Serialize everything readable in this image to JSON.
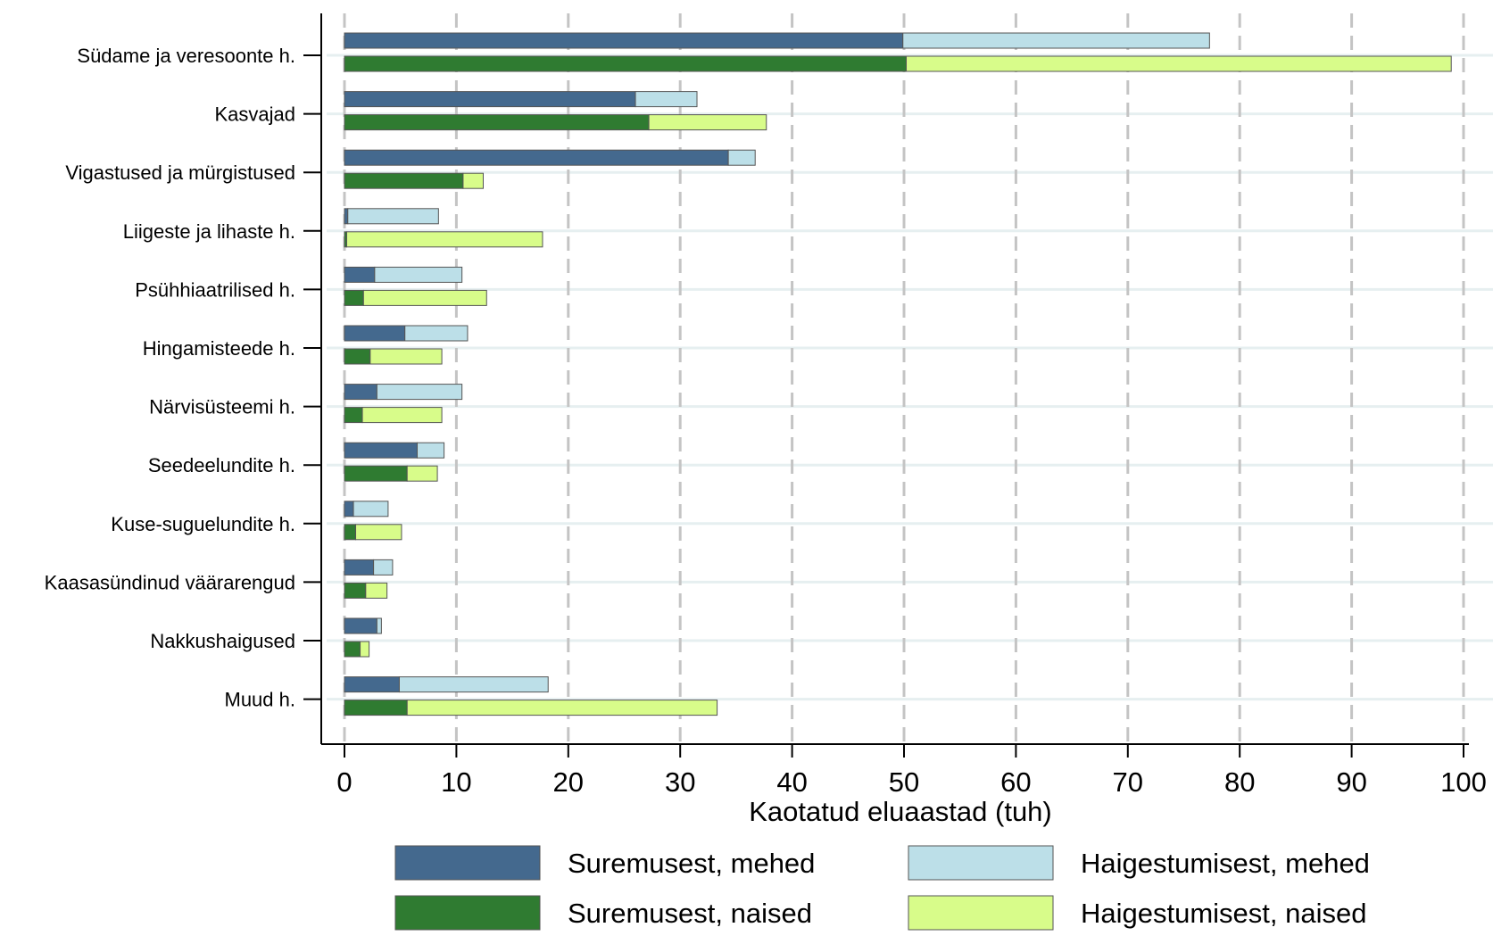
{
  "chart_data": {
    "type": "bar",
    "orientation": "horizontal",
    "stacked": true,
    "xlabel": "Kaotatud eluaastad (tuh)",
    "ylabel": "",
    "xlim": [
      0,
      100
    ],
    "xticks": [
      0,
      10,
      20,
      30,
      40,
      50,
      60,
      70,
      80,
      90,
      100
    ],
    "grid": "vertical dashed",
    "legend_position": "bottom",
    "categories": [
      "Südame ja veresoonte h.",
      "Kasvajad",
      "Vigastused ja mürgistused",
      "Liigeste ja lihaste h.",
      "Psühhiaatrilised h.",
      "Hingamisteede h.",
      "Närvisüsteemi h.",
      "Seedeelundite h.",
      "Kuse-suguelundite h.",
      "Kaasasündinud väärarengud",
      "Nakkushaigused",
      "Muud h."
    ],
    "series": [
      {
        "name": "Suremusest, mehed",
        "color": "#44698e",
        "group": "mehed",
        "values": [
          49.9,
          26.0,
          34.3,
          0.3,
          2.7,
          5.4,
          2.9,
          6.5,
          0.8,
          2.6,
          2.9,
          4.9
        ]
      },
      {
        "name": "Haigestumisest, mehed",
        "color": "#bcdfe8",
        "group": "mehed",
        "values": [
          27.4,
          5.5,
          2.4,
          8.1,
          7.8,
          5.6,
          7.6,
          2.4,
          3.1,
          1.7,
          0.4,
          13.3
        ]
      },
      {
        "name": "Suremusest, naised",
        "color": "#2f7b31",
        "group": "naised",
        "values": [
          50.2,
          27.2,
          10.6,
          0.2,
          1.7,
          2.3,
          1.6,
          5.6,
          1.0,
          1.9,
          1.4,
          5.6
        ]
      },
      {
        "name": "Haigestumisest, naised",
        "color": "#d8fc8a",
        "group": "naised",
        "values": [
          48.7,
          10.5,
          1.8,
          17.5,
          11.0,
          6.4,
          7.1,
          2.7,
          4.1,
          1.9,
          0.8,
          27.7
        ]
      }
    ]
  },
  "legend": {
    "items": [
      {
        "label": "Suremusest, mehed",
        "color": "#44698e"
      },
      {
        "label": "Haigestumisest, mehed",
        "color": "#bcdfe8"
      },
      {
        "label": "Suremusest, naised",
        "color": "#2f7b31"
      },
      {
        "label": "Haigestumisest, naised",
        "color": "#d8fc8a"
      }
    ]
  },
  "colors": {
    "grid": "#c4c4c4",
    "row_line": "#e6eff0",
    "axis": "#000000",
    "bar_stroke": "#555555"
  }
}
